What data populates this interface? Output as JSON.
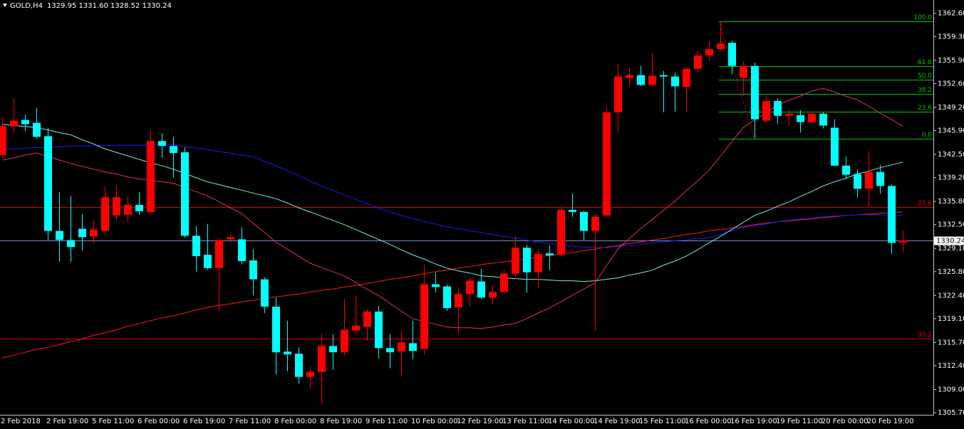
{
  "chart_data": {
    "type": "candlestick",
    "title": "GOLD,H4",
    "subtitle": "1329.95 1331.60 1328.52 1330.24",
    "categories": [
      "2 Feb 2018",
      null,
      null,
      null,
      "2 Feb 19:00",
      null,
      null,
      null,
      "5 Feb 11:00",
      null,
      null,
      null,
      "6 Feb 00:00",
      null,
      null,
      null,
      "6 Feb 19:00",
      null,
      null,
      null,
      "7 Feb 11:00",
      null,
      null,
      null,
      "8 Feb 00:00",
      null,
      null,
      null,
      "8 Feb 19:00",
      null,
      null,
      null,
      "9 Feb 11:00",
      null,
      null,
      null,
      "10 Feb 00:00",
      null,
      null,
      null,
      "12 Feb 19:00",
      null,
      null,
      null,
      "13 Feb 11:00",
      null,
      null,
      null,
      "14 Feb 00:00",
      null,
      null,
      null,
      "14 Feb 19:00",
      null,
      null,
      null,
      "15 Feb 11:00",
      null,
      null,
      null,
      "16 Feb 00:00",
      null,
      null,
      null,
      "16 Feb 19:00",
      null,
      null,
      null,
      "19 Feb 11:00",
      null,
      null,
      null,
      "20 Feb 00:00",
      null,
      null,
      null,
      "20 Feb 19:00",
      null,
      null,
      null
    ],
    "open": [
      1342.4,
      1346.5,
      1347.4,
      1347.0,
      1345.1,
      1331.6,
      1330.3,
      1331.9,
      1330.8,
      1331.6,
      1333.8,
      1333.9,
      1335.3,
      1334.3,
      1344.4,
      1343.7,
      1342.8,
      1330.9,
      1328.2,
      1326.3,
      1330.4,
      1330.4,
      1327.4,
      1324.7,
      1320.8,
      1314.4,
      1314.1,
      1310.8,
      1311.5,
      1315.2,
      1314.3,
      1317.4,
      1317.9,
      1320.1,
      1314.9,
      1314.4,
      1315.6,
      1314.8,
      1324.0,
      1323.7,
      1320.7,
      1322.6,
      1324.4,
      1322.1,
      1322.9,
      1325.5,
      1329.2,
      1325.7,
      1328.4,
      1328.2,
      1334.6,
      1334.3,
      1331.6,
      1333.8,
      1348.5,
      1353.4,
      1353.8,
      1352.4,
      1353.8,
      1353.6,
      1352.1,
      1354.7,
      1356.6,
      1357.5,
      1358.4,
      1353.4,
      1355.1,
      1347.3,
      1350.1,
      1348.0,
      1348.1,
      1347.1,
      1348.3,
      1346.3,
      1340.9,
      1339.7,
      1337.6,
      1340.0,
      1338.0,
      1329.95
    ],
    "high": [
      1347.8,
      1350.5,
      1348.2,
      1349.1,
      1346.3,
      1337.1,
      1336.6,
      1334.0,
      1333.1,
      1337.9,
      1338.1,
      1336.6,
      1337.1,
      1346.0,
      1345.5,
      1345.0,
      1343.5,
      1332.3,
      1332.6,
      1330.5,
      1331.1,
      1332.1,
      1329.0,
      1325.0,
      1322.1,
      1318.8,
      1315.0,
      1312.3,
      1316.9,
      1316.9,
      1321.9,
      1322.4,
      1320.4,
      1320.9,
      1316.9,
      1317.4,
      1318.8,
      1326.8,
      1325.7,
      1324.0,
      1323.5,
      1325.0,
      1326.2,
      1323.9,
      1326.0,
      1330.8,
      1329.6,
      1329.0,
      1329.5,
      1334.8,
      1336.9,
      1334.5,
      1334.1,
      1349.3,
      1355.4,
      1354.8,
      1355.1,
      1356.9,
      1354.4,
      1354.1,
      1354.8,
      1357.2,
      1358.6,
      1361.5,
      1358.7,
      1355.7,
      1355.6,
      1350.8,
      1350.5,
      1348.8,
      1348.8,
      1348.6,
      1348.5,
      1347.5,
      1342.2,
      1340.4,
      1343.0,
      1341.0,
      1338.2,
      1331.6
    ],
    "low": [
      1342.0,
      1345.5,
      1345.8,
      1344.8,
      1330.3,
      1327.2,
      1327.2,
      1328.8,
      1329.8,
      1331.1,
      1333.1,
      1332.9,
      1333.9,
      1334.1,
      1342.0,
      1339.2,
      1330.6,
      1325.8,
      1326.0,
      1320.2,
      1329.8,
      1326.8,
      1322.4,
      1319.9,
      1311.1,
      1311.6,
      1309.8,
      1309.2,
      1307.0,
      1311.8,
      1313.8,
      1316.9,
      1315.9,
      1313.4,
      1312.0,
      1311.0,
      1313.3,
      1314.0,
      1322.8,
      1320.2,
      1317.1,
      1320.9,
      1321.9,
      1321.1,
      1322.6,
      1325.0,
      1322.8,
      1323.5,
      1326.0,
      1328.0,
      1333.6,
      1330.3,
      1317.4,
      1333.6,
      1345.7,
      1352.2,
      1352.2,
      1352.2,
      1348.5,
      1348.6,
      1348.7,
      1354.2,
      1355.8,
      1357.2,
      1353.9,
      1350.8,
      1344.8,
      1347.0,
      1346.8,
      1346.6,
      1345.6,
      1346.8,
      1346.2,
      1340.8,
      1339.0,
      1336.3,
      1335.1,
      1336.9,
      1328.3,
      1328.52
    ],
    "close": [
      1346.5,
      1347.3,
      1346.8,
      1345.0,
      1331.6,
      1330.3,
      1329.3,
      1330.7,
      1331.8,
      1336.4,
      1336.4,
      1335.3,
      1334.4,
      1344.4,
      1343.7,
      1342.7,
      1330.9,
      1328.0,
      1326.3,
      1330.3,
      1330.7,
      1327.3,
      1324.7,
      1320.8,
      1314.3,
      1314.0,
      1310.8,
      1311.5,
      1315.2,
      1314.3,
      1317.5,
      1318.1,
      1320.1,
      1314.9,
      1314.3,
      1315.7,
      1314.5,
      1324.0,
      1323.6,
      1320.6,
      1322.6,
      1324.5,
      1322.1,
      1322.9,
      1325.5,
      1329.2,
      1325.7,
      1328.3,
      1328.1,
      1334.6,
      1334.3,
      1331.6,
      1333.6,
      1348.5,
      1353.6,
      1353.8,
      1352.4,
      1353.7,
      1353.6,
      1352.2,
      1354.7,
      1356.6,
      1357.5,
      1358.3,
      1355.1,
      1355.1,
      1347.5,
      1350.1,
      1348.0,
      1348.3,
      1347.1,
      1348.3,
      1346.6,
      1340.9,
      1339.6,
      1337.6,
      1340.0,
      1338.0,
      1329.9,
      1330.24
    ],
    "up_color": "#ff0000",
    "down_color": "#00ffff",
    "overlays": [
      {
        "color": "#ff1a1a",
        "values": [
          1313.5,
          1313.9,
          1314.3,
          1314.7,
          1315.0,
          1315.4,
          1315.8,
          1316.2,
          1316.7,
          1317.1,
          1317.5,
          1318.0,
          1318.4,
          1318.8,
          1319.2,
          1319.5,
          1319.9,
          1320.3,
          1320.7,
          1321.0,
          1321.2,
          1321.5,
          1321.7,
          1322.0,
          1322.2,
          1322.4,
          1322.6,
          1322.9,
          1323.1,
          1323.3,
          1323.6,
          1323.8,
          1324.1,
          1324.4,
          1324.7,
          1324.9,
          1325.2,
          1325.5,
          1325.8,
          1326.0,
          1326.3,
          1326.5,
          1326.8,
          1327.0,
          1327.2,
          1327.4,
          1327.6,
          1327.9,
          1328.1,
          1328.3,
          1328.5,
          1328.8,
          1329.0,
          1329.3,
          1329.5,
          1329.8,
          1330.0,
          1330.3,
          1330.5,
          1330.8,
          1331.1,
          1331.3,
          1331.6,
          1331.8,
          1332.0,
          1332.2,
          1332.5,
          1332.7,
          1332.9,
          1333.0,
          1333.2,
          1333.3,
          1333.5,
          1333.6,
          1333.8,
          1333.9,
          1334.0,
          1334.1,
          1334.2,
          1334.3
        ]
      },
      {
        "color": "#1a1aff",
        "values": [
          1343.2,
          1343.3,
          1343.4,
          1343.5,
          1343.5,
          1343.6,
          1343.7,
          1343.7,
          1343.7,
          1343.8,
          1343.8,
          1343.8,
          1343.8,
          1343.9,
          1343.9,
          1343.9,
          1343.6,
          1343.4,
          1343.2,
          1342.9,
          1342.7,
          1342.4,
          1342.2,
          1341.5,
          1340.9,
          1340.2,
          1339.5,
          1338.7,
          1338.0,
          1337.4,
          1336.7,
          1336.1,
          1335.5,
          1334.9,
          1334.3,
          1333.8,
          1333.4,
          1332.9,
          1332.6,
          1332.2,
          1331.9,
          1331.6,
          1331.4,
          1331.1,
          1330.8,
          1330.6,
          1330.3,
          1330.0,
          1329.8,
          1329.6,
          1329.4,
          1329.3,
          1329.3,
          1329.2,
          1329.4,
          1329.5,
          1329.7,
          1329.9,
          1330.0,
          1330.2,
          1330.3,
          1330.5,
          1330.6,
          1331.1,
          1331.6,
          1332.1,
          1332.4,
          1332.6,
          1332.9,
          1333.1,
          1333.3,
          1333.4,
          1333.6,
          1333.7,
          1333.8,
          1333.9,
          1333.9,
          1333.9,
          1333.8,
          1333.8
        ]
      },
      {
        "color": "#e0306e",
        "values": [
          1341.7,
          1342.0,
          1342.4,
          1342.7,
          1342.2,
          1341.7,
          1341.2,
          1340.8,
          1340.4,
          1340.0,
          1339.7,
          1339.3,
          1339.0,
          1338.8,
          1338.6,
          1338.4,
          1337.8,
          1337.2,
          1336.6,
          1335.8,
          1334.9,
          1334.1,
          1332.7,
          1331.4,
          1330.0,
          1329.0,
          1328.0,
          1327.0,
          1326.4,
          1325.8,
          1325.2,
          1324.3,
          1323.3,
          1322.4,
          1321.3,
          1320.2,
          1319.1,
          1318.7,
          1318.3,
          1317.9,
          1317.8,
          1317.8,
          1317.7,
          1317.9,
          1318.2,
          1318.4,
          1319.1,
          1319.9,
          1320.6,
          1321.5,
          1322.4,
          1323.3,
          1324.2,
          1326.6,
          1329.0,
          1330.5,
          1331.9,
          1333.2,
          1334.5,
          1335.8,
          1337.3,
          1338.7,
          1340.2,
          1342.2,
          1344.3,
          1346.3,
          1347.4,
          1348.4,
          1349.5,
          1350.2,
          1350.8,
          1351.5,
          1351.9,
          1351.4,
          1350.8,
          1350.3,
          1349.4,
          1348.4,
          1347.5,
          1346.5
        ]
      },
      {
        "color": "#7fe6e6",
        "values": [
          1346.8,
          1346.6,
          1346.5,
          1346.3,
          1346.0,
          1345.6,
          1345.3,
          1344.6,
          1344.0,
          1343.3,
          1342.8,
          1342.3,
          1341.8,
          1341.3,
          1340.9,
          1340.4,
          1339.8,
          1339.2,
          1338.6,
          1338.2,
          1337.8,
          1337.4,
          1337.0,
          1336.6,
          1336.2,
          1335.6,
          1334.9,
          1334.3,
          1333.7,
          1333.1,
          1332.5,
          1331.8,
          1331.1,
          1330.4,
          1329.7,
          1328.9,
          1328.2,
          1327.6,
          1326.9,
          1326.3,
          1325.9,
          1325.6,
          1325.2,
          1325.1,
          1324.9,
          1324.8,
          1324.7,
          1324.7,
          1324.6,
          1324.5,
          1324.5,
          1324.4,
          1324.5,
          1324.7,
          1324.9,
          1325.3,
          1325.6,
          1326.0,
          1326.7,
          1327.3,
          1328.0,
          1328.9,
          1329.9,
          1330.8,
          1331.8,
          1332.8,
          1333.8,
          1334.4,
          1335.1,
          1335.7,
          1336.5,
          1337.2,
          1338.0,
          1338.6,
          1339.1,
          1339.7,
          1340.1,
          1340.6,
          1341.0,
          1341.4
        ]
      }
    ],
    "fib_levels": [
      {
        "value": 1361.5,
        "label": "100.0"
      },
      {
        "value": 1355.1,
        "label": "61.8"
      },
      {
        "value": 1353.1,
        "label": "50.0"
      },
      {
        "value": 1351.1,
        "label": "38.2"
      },
      {
        "value": 1348.6,
        "label": "23.6"
      },
      {
        "value": 1344.7,
        "label": "0.0"
      }
    ],
    "fib_color": "#00c800",
    "fib_levels_2": [
      {
        "value": 1335.0,
        "label": "23.6"
      },
      {
        "value": 1316.2,
        "label": "38.2"
      }
    ],
    "fib_color_2": "#e00000",
    "current_price": {
      "value": 1330.24,
      "label": "1330.24"
    },
    "current_price_color": "#7b8fc7",
    "ylim": [
      1305.4,
      1364.5
    ],
    "yticks": [
      {
        "value": 1362.6,
        "label": "1362.60"
      },
      {
        "value": 1359.3,
        "label": "1359.30"
      },
      {
        "value": 1355.9,
        "label": "1355.90"
      },
      {
        "value": 1352.6,
        "label": "1352.60"
      },
      {
        "value": 1349.2,
        "label": "1349.20"
      },
      {
        "value": 1345.9,
        "label": "1345.90"
      },
      {
        "value": 1342.5,
        "label": "1342.50"
      },
      {
        "value": 1339.2,
        "label": "1339.20"
      },
      {
        "value": 1335.8,
        "label": "1335.80"
      },
      {
        "value": 1332.5,
        "label": "1332.50"
      },
      {
        "value": 1329.1,
        "label": "1329.10"
      },
      {
        "value": 1325.8,
        "label": "1325.80"
      },
      {
        "value": 1322.4,
        "label": "1322.40"
      },
      {
        "value": 1319.1,
        "label": "1319.10"
      },
      {
        "value": 1315.7,
        "label": "1315.70"
      },
      {
        "value": 1312.4,
        "label": "1312.40"
      },
      {
        "value": 1309.0,
        "label": "1309.00"
      },
      {
        "value": 1305.7,
        "label": "1305.70"
      }
    ]
  }
}
